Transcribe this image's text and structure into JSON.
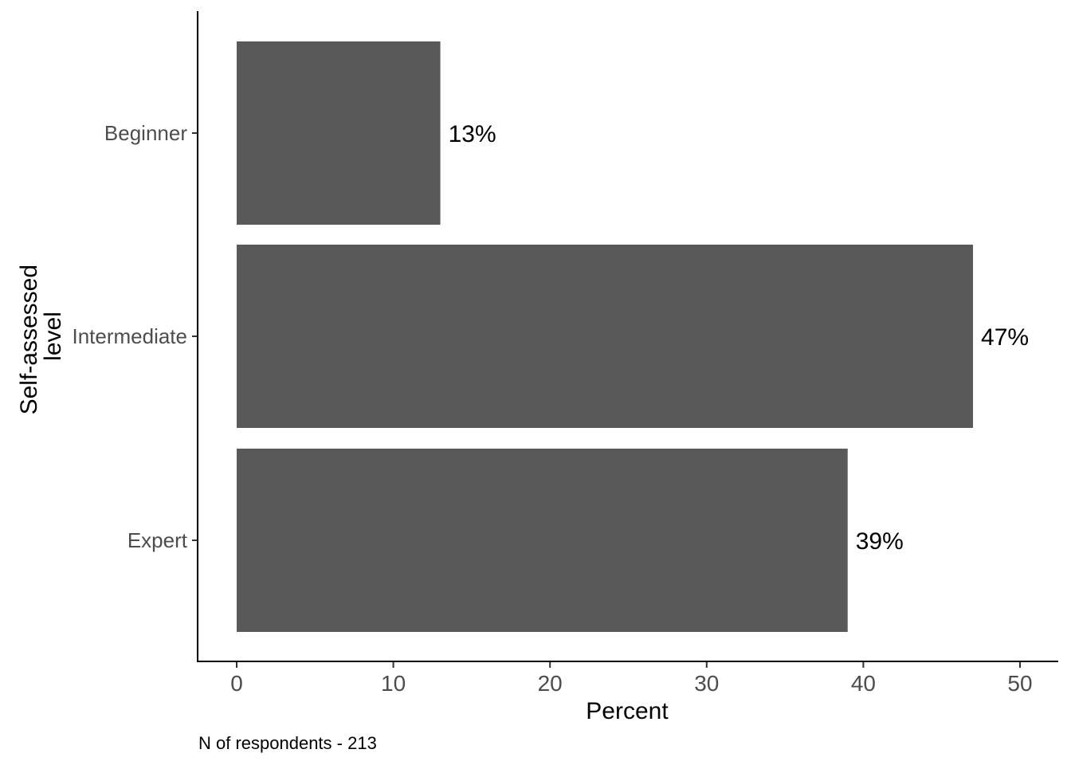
{
  "chart_data": {
    "type": "bar",
    "orientation": "horizontal",
    "categories": [
      "Beginner",
      "Intermediate",
      "Expert"
    ],
    "values": [
      13,
      47,
      39
    ],
    "data_labels": [
      "13%",
      "47%",
      "39%"
    ],
    "xlabel": "Percent",
    "ylabel_lines": [
      "Self-assessed",
      "level"
    ],
    "xlim": [
      0,
      50
    ],
    "xticks": [
      0,
      10,
      20,
      30,
      40,
      50
    ],
    "caption": "N of respondents - 213",
    "grid": false,
    "bar_color": "#595959"
  }
}
